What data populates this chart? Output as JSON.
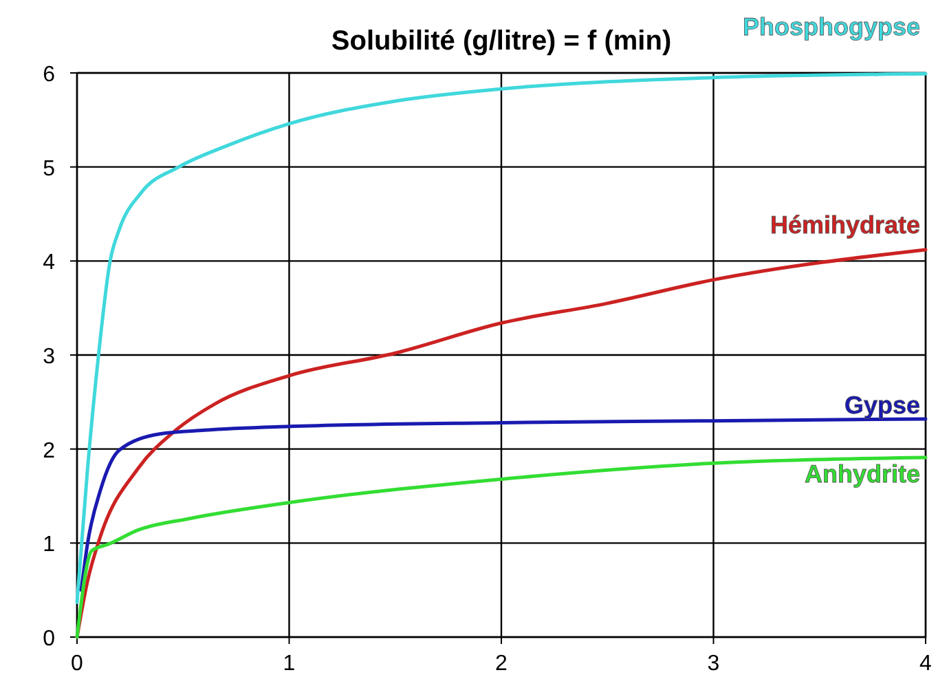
{
  "chart_data": {
    "type": "line",
    "title": "Solubilité (g/litre) = f (min)",
    "xlim": [
      0,
      4
    ],
    "xticks": [
      0,
      1,
      2,
      3,
      4
    ],
    "ylim": [
      0,
      6
    ],
    "yticks": [
      0,
      1,
      2,
      3,
      4,
      5,
      6
    ],
    "grid": true,
    "legend": false,
    "marker": "none",
    "line_style": "solid",
    "series": [
      {
        "name": "Phosphogypse",
        "color": "#40d8dc",
        "x": [
          0,
          0.05,
          0.1,
          0.156,
          0.2,
          0.3,
          0.48,
          0.7,
          1,
          1.5,
          2,
          3,
          4
        ],
        "values": [
          0.37,
          1.8,
          2.97,
          4,
          4.34,
          4.72,
          5,
          5.22,
          5.46,
          5.7,
          5.83,
          5.95,
          5.99
        ]
      },
      {
        "name": "Hémihydrate",
        "color": "#cc2222",
        "x": [
          0,
          0.05,
          0.11,
          0.29,
          0.46,
          0.65,
          1,
          1.5,
          2,
          2.5,
          3,
          4
        ],
        "values": [
          0,
          0.6,
          1.07,
          1.8,
          2.19,
          2.48,
          2.78,
          3.02,
          3.34,
          3.55,
          3.8,
          4.12
        ]
      },
      {
        "name": "Gypse",
        "color": "#1a1ab0",
        "x": [
          0.02,
          0.05,
          0.11,
          0.2,
          0.39,
          0.6,
          1,
          2,
          3,
          4
        ],
        "values": [
          0.5,
          1,
          1.56,
          1.99,
          2.16,
          2.2,
          2.24,
          2.28,
          2.3,
          2.32
        ]
      },
      {
        "name": "Anhydrite",
        "color": "#33dd33",
        "x": [
          0,
          0.07,
          0.15,
          0.29,
          0.53,
          1,
          2,
          3,
          4
        ],
        "values": [
          0,
          0.92,
          0.99,
          1.14,
          1.26,
          1.43,
          1.68,
          1.85,
          1.91
        ]
      }
    ]
  }
}
